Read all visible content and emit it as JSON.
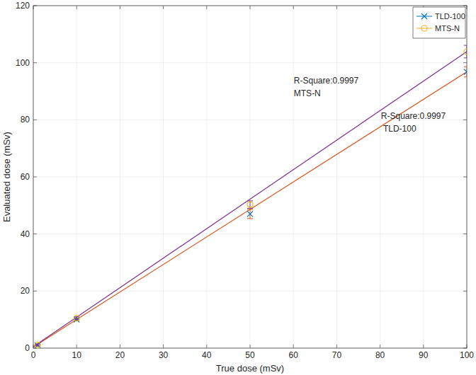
{
  "chart_data": {
    "type": "line",
    "x_label": "True dose (mSv)",
    "y_label": "Evaluated dose (mSv)",
    "x": [
      1,
      10,
      50,
      100
    ],
    "series": [
      {
        "name": "TLD-100",
        "color": "#0072bd",
        "marker": "x",
        "values": [
          1.0,
          10.0,
          47.0,
          96.8
        ],
        "errors": [
          0.3,
          0.4,
          1.6,
          1.8
        ],
        "fit": {
          "x": [
            0,
            100
          ],
          "values": [
            0.4,
            96.8
          ],
          "color": "#d95319"
        }
      },
      {
        "name": "MTS-N",
        "color": "#edb120",
        "marker": "circle",
        "values": [
          1.1,
          10.5,
          50.3,
          103.9
        ],
        "errors": [
          0.3,
          0.5,
          1.3,
          2.2
        ],
        "fit": {
          "x": [
            0,
            100
          ],
          "values": [
            0.5,
            103.9
          ],
          "color": "#7e2f8e"
        }
      }
    ],
    "annotations": [
      {
        "lines": [
          "R-Square:0.9997",
          "MTS-N"
        ],
        "x": 60.1,
        "y": 92.7
      },
      {
        "lines": [
          "R-Square:0.9997",
          " TLD-100"
        ],
        "x": 80.2,
        "y": 80.3
      }
    ],
    "xlim": [
      0,
      100
    ],
    "xticks": [
      0,
      10,
      20,
      30,
      40,
      50,
      60,
      70,
      80,
      90,
      100
    ],
    "ylim": [
      0,
      120
    ],
    "yticks": [
      0,
      20,
      40,
      60,
      80,
      100,
      120
    ],
    "grid": true,
    "legend": "top-right"
  }
}
